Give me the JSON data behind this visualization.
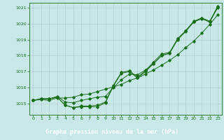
{
  "xlabel": "Graphe pression niveau de la mer (hPa)",
  "ylim": [
    1014.3,
    1021.3
  ],
  "xlim": [
    -0.5,
    23.5
  ],
  "yticks": [
    1015,
    1016,
    1017,
    1018,
    1019,
    1020,
    1021
  ],
  "xticks": [
    0,
    1,
    2,
    3,
    4,
    5,
    6,
    7,
    8,
    9,
    10,
    11,
    12,
    13,
    14,
    15,
    16,
    17,
    18,
    19,
    20,
    21,
    22,
    23
  ],
  "bg_color": "#c8e8e8",
  "line_color": "#1a6e1a",
  "grid_color": "#b0c8c8",
  "footer_color": "#1a6e1a",
  "footer_text_color": "#ffffff",
  "series1": [
    1015.2,
    1015.3,
    1015.3,
    1015.4,
    1014.9,
    1014.75,
    1014.8,
    1014.8,
    1014.8,
    1015.05,
    1016.1,
    1016.9,
    1017.0,
    1016.6,
    1017.0,
    1017.5,
    1018.0,
    1018.15,
    1019.0,
    1019.5,
    1020.1,
    1020.3,
    1020.1,
    1021.0
  ],
  "series2": [
    1015.2,
    1015.3,
    1015.3,
    1015.4,
    1014.9,
    1014.75,
    1014.85,
    1014.85,
    1014.9,
    1015.1,
    1016.15,
    1016.95,
    1017.05,
    1016.65,
    1017.05,
    1017.6,
    1018.1,
    1018.2,
    1019.05,
    1019.55,
    1020.15,
    1020.35,
    1020.15,
    1021.05
  ],
  "series3": [
    1015.2,
    1015.3,
    1015.3,
    1015.45,
    1015.1,
    1015.05,
    1015.2,
    1015.3,
    1015.4,
    1015.45,
    1016.0,
    1016.5,
    1016.85,
    1016.8,
    1017.1,
    1017.5,
    1018.0,
    1018.15,
    1019.05,
    1019.55,
    1020.1,
    1020.35,
    1020.1,
    1021.1
  ],
  "series4": [
    1015.2,
    1015.25,
    1015.2,
    1015.35,
    1015.35,
    1015.4,
    1015.55,
    1015.6,
    1015.75,
    1015.9,
    1016.05,
    1016.2,
    1016.45,
    1016.6,
    1016.85,
    1017.1,
    1017.4,
    1017.7,
    1018.05,
    1018.5,
    1018.9,
    1019.4,
    1019.95,
    1020.55
  ]
}
